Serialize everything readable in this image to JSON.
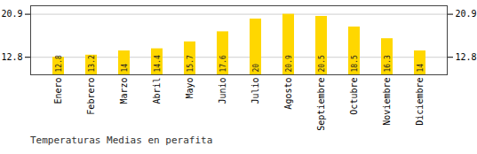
{
  "chart_data": {
    "type": "bar",
    "title": "Temperaturas Medias en perafita",
    "categories": [
      "Enero",
      "Febrero",
      "Marzo",
      "Abril",
      "Mayo",
      "Junio",
      "Julio",
      "Agosto",
      "Septiembre",
      "Octubre",
      "Noviembre",
      "Diciembre"
    ],
    "values": [
      12.8,
      13.2,
      14.0,
      14.4,
      15.7,
      17.6,
      20.0,
      20.9,
      20.5,
      18.5,
      16.3,
      14.0
    ],
    "color": "#FFD700",
    "ylim": [
      9.5,
      22.5
    ],
    "yticks": [
      12.8,
      20.9
    ],
    "grid": true,
    "data_labels": true
  }
}
